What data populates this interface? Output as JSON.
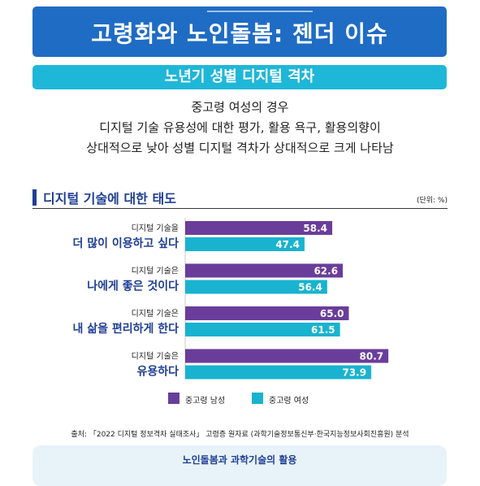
{
  "header": {
    "title": "고령화와 노인돌봄: 젠더 이슈"
  },
  "subhead": {
    "title": "노년기 성별 디지털 격차"
  },
  "description": {
    "line1": "중고령 여성의 경우",
    "line2": "디지털 기술 유용성에 대한 평가, 활용 욕구, 활용의향이",
    "line3": "상대적으로 낮아 성별 디지털 격차가 상대적으로 크게 나타남"
  },
  "section": {
    "title": "디지털 기술에 대한 태도",
    "unit": "(단위: %)"
  },
  "colors": {
    "male": "#6a3d9a",
    "female": "#19b3cf",
    "accent": "#1f3f94"
  },
  "chart_data": {
    "type": "bar",
    "orientation": "horizontal",
    "categories": [
      {
        "small": "디지털 기술을",
        "big": "더 많이 이용하고 싶다"
      },
      {
        "small": "디지털 기술은",
        "big": "나에게 좋은 것이다"
      },
      {
        "small": "디지털 기술은",
        "big": "내 삶을 편리하게 한다"
      },
      {
        "small": "디지털 기술은",
        "big": "유용하다"
      }
    ],
    "series": [
      {
        "name": "중고령 남성",
        "values": [
          58.4,
          62.6,
          65.0,
          80.7
        ]
      },
      {
        "name": "중고령 여성",
        "values": [
          47.4,
          56.4,
          61.5,
          73.9
        ]
      }
    ],
    "xlim": [
      0,
      100
    ],
    "legend": "bottom"
  },
  "source": "출처: 「2022 디지털 정보격차 실태조사」 고령층 원자료 (과학기술정보통신부·한국지능정보사회진흥원) 분석",
  "footer": {
    "title": "노인돌봄과 과학기술의 활용"
  }
}
